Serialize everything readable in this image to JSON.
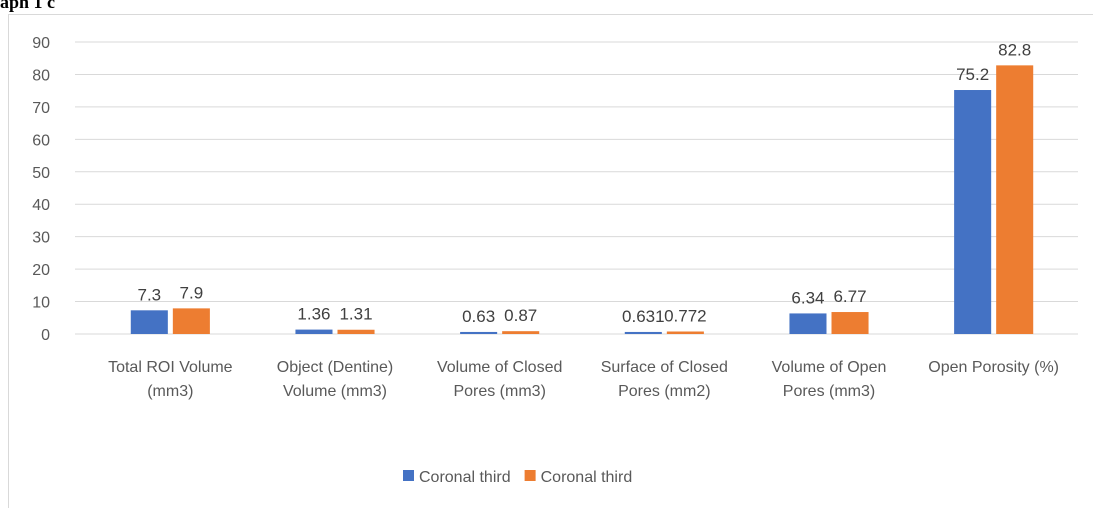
{
  "chart_data": {
    "type": "bar",
    "title": "aph 1 c",
    "categories": [
      "Total ROI Volume (mm3)",
      "Object (Dentine) Volume (mm3)",
      "Volume of Closed Pores (mm3)",
      "Surface of Closed Pores (mm2)",
      "Volume of Open Pores (mm3)",
      "Open Porosity (%)"
    ],
    "series": [
      {
        "name": "Coronal third",
        "color": "#4472c4",
        "values": [
          7.3,
          1.36,
          0.63,
          0.631,
          6.34,
          75.2
        ]
      },
      {
        "name": "Coronal third",
        "color": "#ed7d31",
        "values": [
          7.9,
          1.31,
          0.87,
          0.772,
          6.77,
          82.8
        ]
      }
    ],
    "ylim": [
      0,
      90
    ],
    "yticks": [
      0,
      10,
      20,
      30,
      40,
      50,
      60,
      70,
      80,
      90
    ],
    "grid": true,
    "legend": "bottom"
  }
}
